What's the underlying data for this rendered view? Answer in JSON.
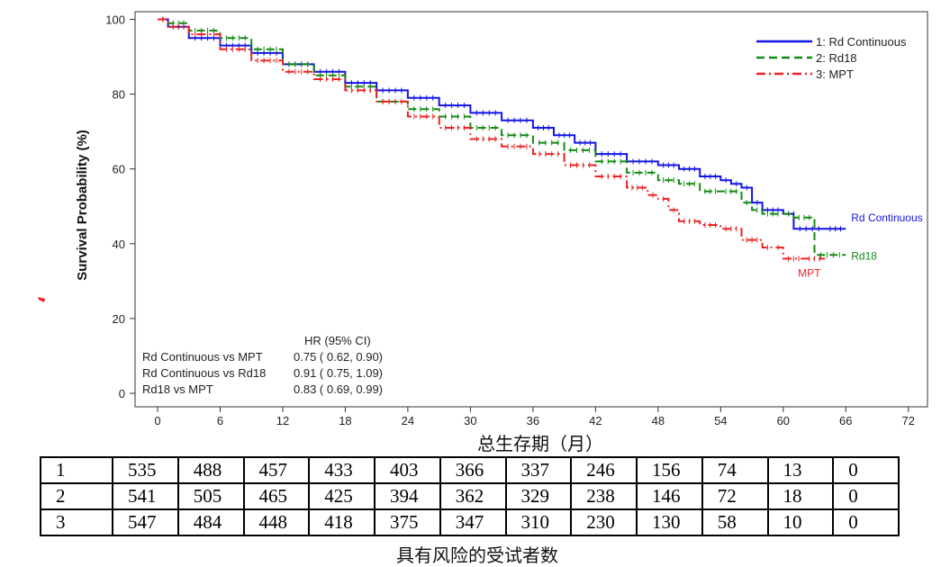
{
  "chart_data": {
    "type": "line",
    "title": "",
    "xlabel": "总生存期（月）",
    "ylabel": "Survival Probability (%)",
    "xlim": [
      0,
      72
    ],
    "ylim": [
      0,
      100
    ],
    "xticks": [
      0,
      6,
      12,
      18,
      24,
      30,
      36,
      42,
      48,
      54,
      60,
      66,
      72
    ],
    "yticks": [
      0,
      20,
      40,
      60,
      80,
      100
    ],
    "legend": {
      "position": "top-right",
      "entries": [
        "1: Rd Continuous",
        "2: Rd18",
        "3: MPT"
      ]
    },
    "series": [
      {
        "name": "1: Rd Continuous",
        "end_label": "Rd Continuous",
        "color": "#1414e6",
        "dash": "solid",
        "points": [
          [
            0,
            100
          ],
          [
            1,
            98
          ],
          [
            3,
            95
          ],
          [
            6,
            93
          ],
          [
            9,
            91
          ],
          [
            12,
            88
          ],
          [
            15,
            86
          ],
          [
            18,
            83
          ],
          [
            21,
            81
          ],
          [
            24,
            79
          ],
          [
            27,
            77
          ],
          [
            30,
            75
          ],
          [
            33,
            73
          ],
          [
            36,
            71
          ],
          [
            38,
            69
          ],
          [
            40,
            67
          ],
          [
            42,
            64
          ],
          [
            45,
            62
          ],
          [
            48,
            61
          ],
          [
            50,
            60
          ],
          [
            52,
            58
          ],
          [
            54,
            57
          ],
          [
            55,
            56
          ],
          [
            56,
            55
          ],
          [
            57,
            51
          ],
          [
            58,
            49
          ],
          [
            60,
            48
          ],
          [
            61,
            48
          ],
          [
            61,
            44
          ],
          [
            64,
            44
          ],
          [
            66,
            44
          ]
        ]
      },
      {
        "name": "2: Rd18",
        "end_label": "Rd18",
        "color": "#128a12",
        "dash": "dashed",
        "points": [
          [
            0,
            100
          ],
          [
            1,
            99
          ],
          [
            3,
            97
          ],
          [
            6,
            95
          ],
          [
            9,
            92
          ],
          [
            12,
            88
          ],
          [
            15,
            85
          ],
          [
            18,
            82
          ],
          [
            21,
            78
          ],
          [
            24,
            76
          ],
          [
            27,
            74
          ],
          [
            30,
            71
          ],
          [
            33,
            69
          ],
          [
            36,
            67
          ],
          [
            39,
            65
          ],
          [
            42,
            62
          ],
          [
            45,
            59
          ],
          [
            48,
            57
          ],
          [
            50,
            56
          ],
          [
            52,
            54
          ],
          [
            54,
            54
          ],
          [
            56,
            51
          ],
          [
            57,
            49
          ],
          [
            58,
            48
          ],
          [
            60,
            48
          ],
          [
            61,
            47
          ],
          [
            63,
            46
          ],
          [
            63,
            37
          ],
          [
            66,
            37
          ]
        ]
      },
      {
        "name": "3: MPT",
        "end_label": "MPT",
        "color": "#ee2222",
        "dash": "dashdot",
        "points": [
          [
            0,
            100
          ],
          [
            1,
            98
          ],
          [
            3,
            96
          ],
          [
            6,
            92
          ],
          [
            9,
            89
          ],
          [
            12,
            86
          ],
          [
            15,
            84
          ],
          [
            18,
            81
          ],
          [
            21,
            78
          ],
          [
            24,
            74
          ],
          [
            27,
            71
          ],
          [
            30,
            68
          ],
          [
            33,
            66
          ],
          [
            36,
            64
          ],
          [
            39,
            61
          ],
          [
            42,
            58
          ],
          [
            45,
            55
          ],
          [
            47,
            53
          ],
          [
            48,
            52
          ],
          [
            49,
            49
          ],
          [
            50,
            46
          ],
          [
            52,
            45
          ],
          [
            54,
            44
          ],
          [
            56,
            41
          ],
          [
            58,
            39
          ],
          [
            59,
            39
          ],
          [
            60,
            36
          ],
          [
            62,
            36
          ],
          [
            64,
            36
          ]
        ]
      }
    ],
    "hr_table": {
      "header": "HR (95% CI)",
      "rows": [
        {
          "label": "Rd Continuous vs MPT",
          "value": "0.75 ( 0.62,  0.90)"
        },
        {
          "label": "Rd Continuous vs Rd18",
          "value": "0.91 ( 0.75,  1.09)"
        },
        {
          "label": "Rd18 vs MPT",
          "value": "0.83 ( 0.69,  0.99)"
        }
      ]
    }
  },
  "risk_table": {
    "title": "具有风险的受试者数",
    "rows": [
      {
        "group": "1",
        "counts": [
          "535",
          "488",
          "457",
          "433",
          "403",
          "366",
          "337",
          "246",
          "156",
          "74",
          "13",
          "0"
        ]
      },
      {
        "group": "2",
        "counts": [
          "541",
          "505",
          "465",
          "425",
          "394",
          "362",
          "329",
          "238",
          "146",
          "72",
          "18",
          "0"
        ]
      },
      {
        "group": "3",
        "counts": [
          "547",
          "484",
          "448",
          "418",
          "375",
          "347",
          "310",
          "230",
          "130",
          "58",
          "10",
          "0"
        ]
      }
    ]
  }
}
